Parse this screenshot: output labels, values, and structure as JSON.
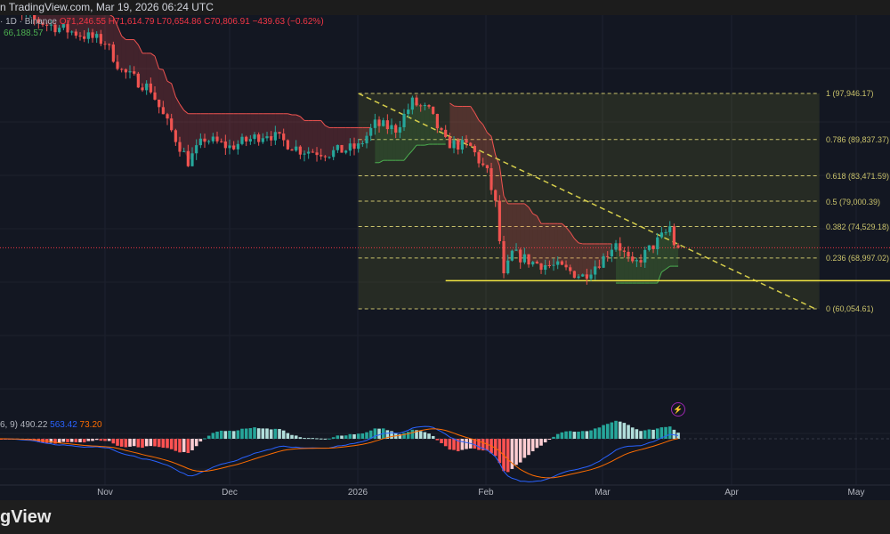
{
  "header": {
    "text": "n TradingView.com, Mar 19, 2026 06:24 UTC"
  },
  "legend": {
    "symbol_interval": "· 1D · Binance",
    "open": "O71,246.55",
    "high": "H71,614.79",
    "low": "L70,654.86",
    "close": "C70,806.91",
    "change": "−439.63 (−0.62%)",
    "indicator_value": "66,188.57"
  },
  "macd_legend": {
    "params": "6, 9)",
    "v1": "490.22",
    "v2": "563.42",
    "v3": "73.20"
  },
  "footer": {
    "logo": "gView"
  },
  "colors": {
    "up": "#26a69a",
    "down": "#ef5350",
    "background": "#131722",
    "fib": "#c9c26b",
    "macd": "#2962ff",
    "signal": "#ff6d00"
  },
  "chart_data": {
    "type": "candlestick",
    "interval": "1D",
    "exchange": "Binance",
    "x_ticks": [
      "Nov",
      "Dec",
      "2026",
      "Feb",
      "Mar",
      "Apr",
      "May"
    ],
    "approx_closes": [
      [
        "2025-10-06",
        114000
      ],
      [
        "2025-10-10",
        112000
      ],
      [
        "2025-10-20",
        109700
      ],
      [
        "2025-11-01",
        107000
      ],
      [
        "2025-11-05",
        101900
      ],
      [
        "2025-11-12",
        98700
      ],
      [
        "2025-11-15",
        94000
      ],
      [
        "2025-11-21",
        86000
      ],
      [
        "2025-11-25",
        90000
      ],
      [
        "2025-12-01",
        88500
      ],
      [
        "2025-12-10",
        91000
      ],
      [
        "2025-12-18",
        88000
      ],
      [
        "2025-12-25",
        87500
      ],
      [
        "2026-01-01",
        88500
      ],
      [
        "2026-01-05",
        92500
      ],
      [
        "2026-01-10",
        91700
      ],
      [
        "2026-01-14",
        96400
      ],
      [
        "2026-01-18",
        94800
      ],
      [
        "2026-01-22",
        89300
      ],
      [
        "2026-01-28",
        88500
      ],
      [
        "2026-02-01",
        83900
      ],
      [
        "2026-02-03",
        78400
      ],
      [
        "2026-02-05",
        65500
      ],
      [
        "2026-02-07",
        69800
      ],
      [
        "2026-02-12",
        68200
      ],
      [
        "2026-02-18",
        67400
      ],
      [
        "2026-02-24",
        65800
      ],
      [
        "2026-03-01",
        69000
      ],
      [
        "2026-03-04",
        72000
      ],
      [
        "2026-03-08",
        67400
      ],
      [
        "2026-03-12",
        70500
      ],
      [
        "2026-03-16",
        73400
      ],
      [
        "2026-03-17",
        74500
      ],
      [
        "2026-03-18",
        71246.55
      ],
      [
        "2026-03-19",
        70806.91
      ]
    ],
    "last_candle": {
      "open": 71246.55,
      "high": 71614.79,
      "low": 70654.86,
      "close": 70806.91
    },
    "fibonacci": [
      {
        "ratio": "1",
        "price": 97946.17,
        "label": "1 (97,946.17)"
      },
      {
        "ratio": "0.786",
        "price": 89837.37,
        "label": "0.786 (89,837.37)"
      },
      {
        "ratio": "0.618",
        "price": 83471.59,
        "label": "0.618 (83,471.59)"
      },
      {
        "ratio": "0.5",
        "price": 79000.39,
        "label": "0.5 (79,000.39)"
      },
      {
        "ratio": "0.382",
        "price": 74529.18,
        "label": "0.382 (74,529.18)"
      },
      {
        "ratio": "0.236",
        "price": 68997.02,
        "label": "0.236 (68,997.02)"
      },
      {
        "ratio": "0",
        "price": 60054.61,
        "label": "0 (60,054.61)"
      }
    ],
    "fib_range": {
      "start": "2026-01-01",
      "end": "2026-04-22"
    },
    "trendline": {
      "from": [
        "2026-01-01",
        97946.17
      ],
      "to": [
        "2026-04-21",
        60054.61
      ]
    },
    "horizontal_line": {
      "price": 65000,
      "from": "2026-01-22"
    },
    "indicators": [
      "Supertrend",
      "MACD"
    ]
  }
}
